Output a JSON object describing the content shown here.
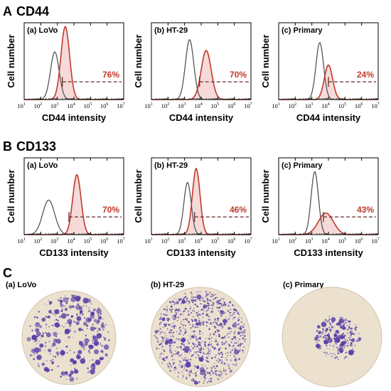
{
  "sections": {
    "A": {
      "letter": "A",
      "title": "CD44",
      "xlabel": "CD44 intensity",
      "ylabel": "Cell number"
    },
    "B": {
      "letter": "B",
      "title": "CD133",
      "xlabel": "CD133 intensity",
      "ylabel": "Cell number"
    },
    "C": {
      "letter": "C"
    }
  },
  "panel_labels": [
    "(a) LoVo",
    "(b) HT-29",
    "(c) Primary"
  ],
  "x_ticks": [
    "10",
    "10",
    "10",
    "10",
    "10",
    "10",
    "10"
  ],
  "x_tick_exps": [
    "1",
    "2",
    "3",
    "4",
    "5",
    "6",
    "7"
  ],
  "colors": {
    "control_curve": "#555555",
    "marker_curve": "#c0392b",
    "marker_fill": "#f6dada",
    "gate": "#6b2a2a",
    "stain": "#5a3fa8",
    "plate": "#ece0cf"
  },
  "chart_data": [
    {
      "type": "area",
      "panel": "A(a) LoVo",
      "x_scale": "log",
      "xlim": [
        10,
        10000000
      ],
      "control_peak": 700,
      "marker_peak": 3000,
      "gate_start": 2000,
      "percent_label": "76%"
    },
    {
      "type": "area",
      "panel": "A(b) HT-29",
      "x_scale": "log",
      "xlim": [
        10,
        10000000
      ],
      "control_peak": 2000,
      "marker_peak": 20000,
      "gate_start": 8000,
      "percent_label": "70%"
    },
    {
      "type": "area",
      "panel": "A(c) Primary",
      "x_scale": "log",
      "xlim": [
        10,
        10000000
      ],
      "control_peak": 3000,
      "marker_peak": 10000,
      "gate_start": 10000,
      "percent_label": "24%"
    },
    {
      "type": "area",
      "panel": "B(a) LoVo",
      "x_scale": "log",
      "xlim": [
        10,
        10000000
      ],
      "control_peak": 300,
      "marker_peak": 15000,
      "gate_start": 5000,
      "percent_label": "70%"
    },
    {
      "type": "area",
      "panel": "B(b) HT-29",
      "x_scale": "log",
      "xlim": [
        10,
        10000000
      ],
      "control_peak": 1500,
      "marker_peak": 5000,
      "gate_start": 4000,
      "percent_label": "46%"
    },
    {
      "type": "area",
      "panel": "B(c) Primary",
      "x_scale": "log",
      "xlim": [
        10,
        10000000
      ],
      "control_peak": 1500,
      "marker_peak": 7000,
      "gate_start": 5000,
      "percent_label": "43%"
    }
  ]
}
